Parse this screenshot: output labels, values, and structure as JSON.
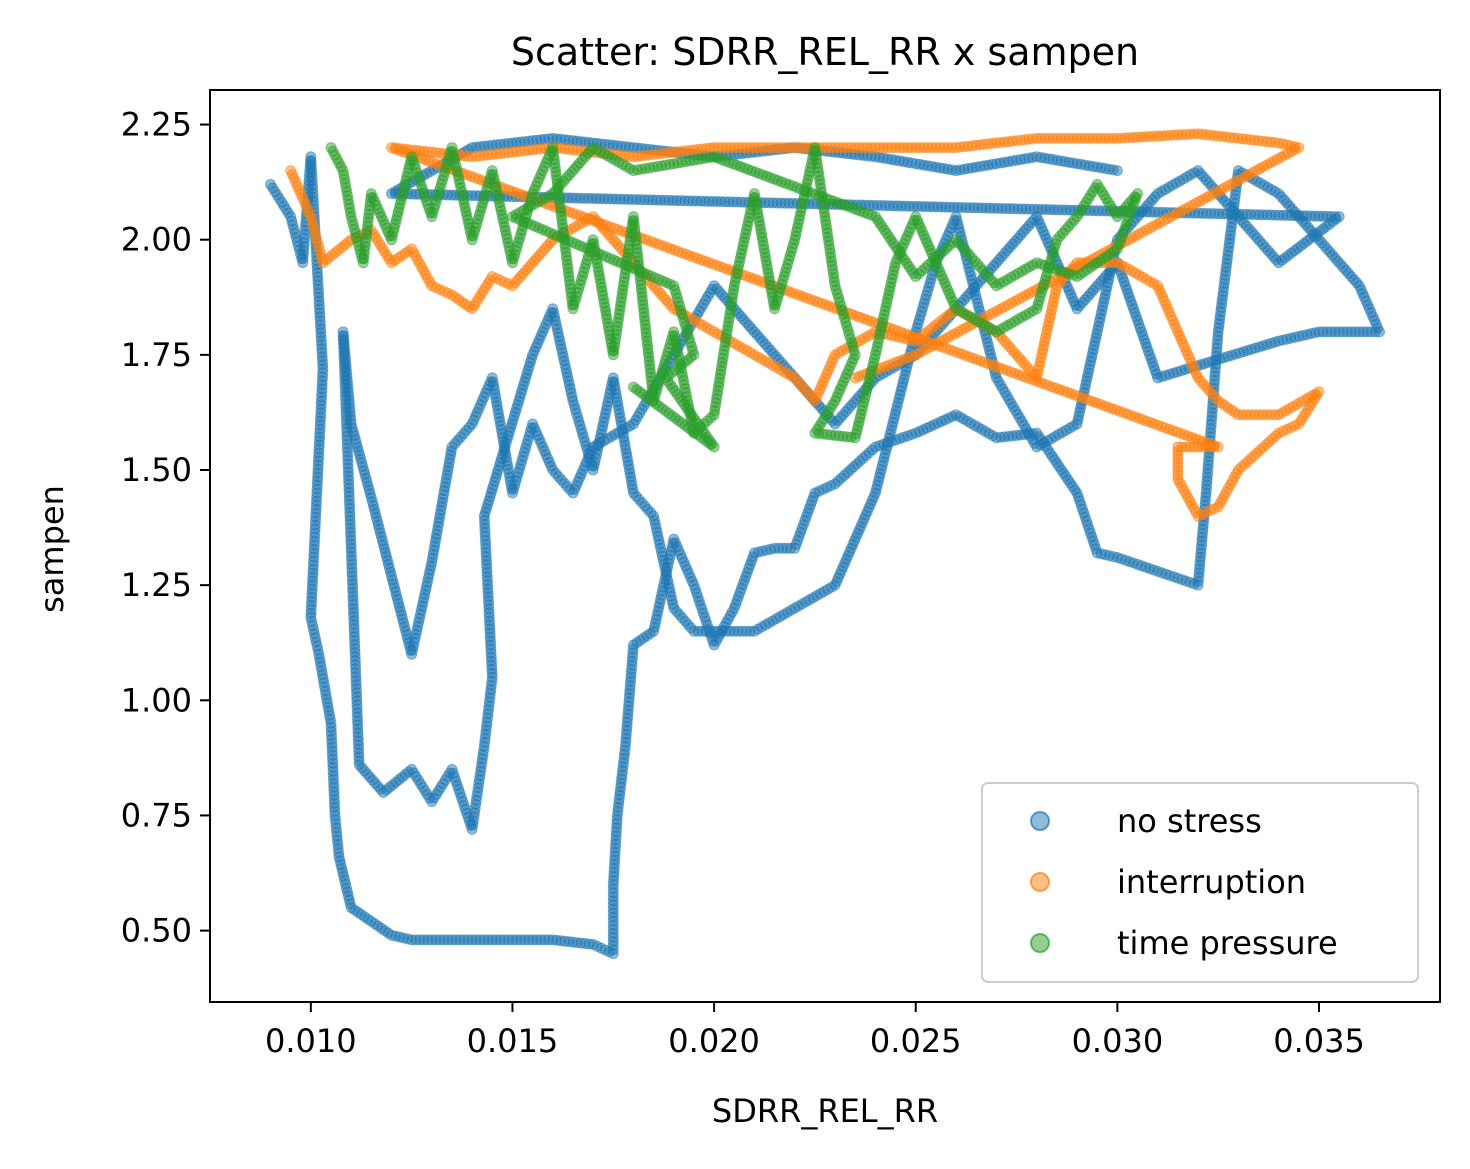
{
  "chart_data": {
    "type": "scatter",
    "title": "Scatter: SDRR_REL_RR x sampen",
    "xlabel": "SDRR_REL_RR",
    "ylabel": "sampen",
    "xlim": [
      0.0075,
      0.038
    ],
    "ylim": [
      0.345,
      2.325
    ],
    "xticks": [
      0.01,
      0.015,
      0.02,
      0.025,
      0.03,
      0.035
    ],
    "xtick_labels": [
      "0.010",
      "0.015",
      "0.020",
      "0.025",
      "0.030",
      "0.035"
    ],
    "yticks": [
      0.5,
      0.75,
      1.0,
      1.25,
      1.5,
      1.75,
      2.0,
      2.25
    ],
    "ytick_labels": [
      "0.50",
      "0.75",
      "1.00",
      "1.25",
      "1.50",
      "1.75",
      "2.00",
      "2.25"
    ],
    "grid": false,
    "legend_position": "lower-right",
    "series": [
      {
        "name": "no stress",
        "color": "#1f77b4",
        "points": [
          [
            0.009,
            2.12
          ],
          [
            0.0095,
            2.05
          ],
          [
            0.0098,
            1.95
          ],
          [
            0.01,
            2.18
          ],
          [
            0.0103,
            1.72
          ],
          [
            0.01,
            1.18
          ],
          [
            0.0102,
            1.1
          ],
          [
            0.0105,
            0.95
          ],
          [
            0.0106,
            0.75
          ],
          [
            0.0107,
            0.66
          ],
          [
            0.011,
            0.55
          ],
          [
            0.0115,
            0.52
          ],
          [
            0.012,
            0.49
          ],
          [
            0.0125,
            0.48
          ],
          [
            0.013,
            0.48
          ],
          [
            0.014,
            0.48
          ],
          [
            0.015,
            0.48
          ],
          [
            0.016,
            0.48
          ],
          [
            0.017,
            0.47
          ],
          [
            0.0175,
            0.45
          ],
          [
            0.0175,
            0.6
          ],
          [
            0.0176,
            0.75
          ],
          [
            0.0178,
            0.9
          ],
          [
            0.018,
            1.12
          ],
          [
            0.0185,
            1.15
          ],
          [
            0.019,
            1.35
          ],
          [
            0.0195,
            1.25
          ],
          [
            0.02,
            1.12
          ],
          [
            0.0205,
            1.2
          ],
          [
            0.021,
            1.32
          ],
          [
            0.0215,
            1.33
          ],
          [
            0.022,
            1.33
          ],
          [
            0.0225,
            1.45
          ],
          [
            0.023,
            1.47
          ],
          [
            0.024,
            1.55
          ],
          [
            0.025,
            1.58
          ],
          [
            0.026,
            1.62
          ],
          [
            0.027,
            1.57
          ],
          [
            0.028,
            1.58
          ],
          [
            0.029,
            1.45
          ],
          [
            0.0295,
            1.32
          ],
          [
            0.03,
            1.31
          ],
          [
            0.031,
            1.28
          ],
          [
            0.032,
            1.25
          ],
          [
            0.0322,
            1.45
          ],
          [
            0.0325,
            1.8
          ],
          [
            0.033,
            2.15
          ],
          [
            0.034,
            2.1
          ],
          [
            0.035,
            2.0
          ],
          [
            0.036,
            1.9
          ],
          [
            0.0365,
            1.8
          ],
          [
            0.035,
            1.8
          ],
          [
            0.034,
            1.78
          ],
          [
            0.031,
            1.7
          ],
          [
            0.03,
            1.95
          ],
          [
            0.029,
            1.85
          ],
          [
            0.028,
            2.05
          ],
          [
            0.027,
            1.95
          ],
          [
            0.026,
            1.85
          ],
          [
            0.025,
            1.75
          ],
          [
            0.024,
            1.7
          ],
          [
            0.023,
            1.6
          ],
          [
            0.022,
            1.7
          ],
          [
            0.021,
            1.8
          ],
          [
            0.02,
            1.9
          ],
          [
            0.019,
            1.75
          ],
          [
            0.018,
            1.6
          ],
          [
            0.017,
            1.55
          ],
          [
            0.0165,
            1.45
          ],
          [
            0.016,
            1.5
          ],
          [
            0.0155,
            1.6
          ],
          [
            0.015,
            1.45
          ],
          [
            0.0145,
            1.7
          ],
          [
            0.014,
            1.6
          ],
          [
            0.0135,
            1.55
          ],
          [
            0.013,
            1.3
          ],
          [
            0.0125,
            1.1
          ],
          [
            0.012,
            1.27
          ],
          [
            0.0115,
            1.44
          ],
          [
            0.011,
            1.6
          ],
          [
            0.0108,
            1.8
          ],
          [
            0.0112,
            0.86
          ],
          [
            0.0118,
            0.8
          ],
          [
            0.0125,
            0.85
          ],
          [
            0.013,
            0.78
          ],
          [
            0.0135,
            0.85
          ],
          [
            0.014,
            0.72
          ],
          [
            0.0143,
            0.9
          ],
          [
            0.0145,
            1.05
          ],
          [
            0.0143,
            1.4
          ],
          [
            0.0155,
            1.75
          ],
          [
            0.016,
            1.85
          ],
          [
            0.0165,
            1.65
          ],
          [
            0.017,
            1.5
          ],
          [
            0.0175,
            1.7
          ],
          [
            0.018,
            1.45
          ],
          [
            0.0185,
            1.4
          ],
          [
            0.019,
            1.2
          ],
          [
            0.0195,
            1.15
          ],
          [
            0.021,
            1.15
          ],
          [
            0.022,
            1.2
          ],
          [
            0.023,
            1.25
          ],
          [
            0.024,
            1.45
          ],
          [
            0.025,
            1.8
          ],
          [
            0.0255,
            1.95
          ],
          [
            0.026,
            2.05
          ],
          [
            0.027,
            1.7
          ],
          [
            0.028,
            1.55
          ],
          [
            0.029,
            1.6
          ],
          [
            0.03,
            2.0
          ],
          [
            0.031,
            2.1
          ],
          [
            0.032,
            2.15
          ],
          [
            0.033,
            2.05
          ],
          [
            0.034,
            1.95
          ],
          [
            0.0355,
            2.05
          ],
          [
            0.012,
            2.1
          ],
          [
            0.014,
            2.2
          ],
          [
            0.016,
            2.22
          ],
          [
            0.018,
            2.2
          ],
          [
            0.02,
            2.18
          ],
          [
            0.022,
            2.2
          ],
          [
            0.024,
            2.18
          ],
          [
            0.026,
            2.15
          ],
          [
            0.028,
            2.18
          ],
          [
            0.03,
            2.15
          ]
        ]
      },
      {
        "name": "interruption",
        "color": "#ff7f0e",
        "points": [
          [
            0.0095,
            2.15
          ],
          [
            0.01,
            2.05
          ],
          [
            0.0103,
            1.95
          ],
          [
            0.011,
            2.0
          ],
          [
            0.0115,
            2.02
          ],
          [
            0.012,
            1.95
          ],
          [
            0.0125,
            1.98
          ],
          [
            0.013,
            1.9
          ],
          [
            0.0135,
            1.88
          ],
          [
            0.014,
            1.85
          ],
          [
            0.0145,
            1.92
          ],
          [
            0.015,
            1.9
          ],
          [
            0.016,
            2.0
          ],
          [
            0.017,
            2.05
          ],
          [
            0.018,
            1.95
          ],
          [
            0.019,
            1.85
          ],
          [
            0.02,
            1.8
          ],
          [
            0.021,
            1.75
          ],
          [
            0.022,
            1.7
          ],
          [
            0.0225,
            1.65
          ],
          [
            0.023,
            1.75
          ],
          [
            0.024,
            1.8
          ],
          [
            0.025,
            1.78
          ],
          [
            0.026,
            1.85
          ],
          [
            0.027,
            1.8
          ],
          [
            0.028,
            1.7
          ],
          [
            0.0285,
            1.9
          ],
          [
            0.029,
            1.95
          ],
          [
            0.03,
            1.95
          ],
          [
            0.031,
            1.9
          ],
          [
            0.0315,
            1.8
          ],
          [
            0.032,
            1.7
          ],
          [
            0.0325,
            1.65
          ],
          [
            0.033,
            1.62
          ],
          [
            0.034,
            1.62
          ],
          [
            0.035,
            1.67
          ],
          [
            0.0345,
            1.6
          ],
          [
            0.034,
            1.58
          ],
          [
            0.033,
            1.5
          ],
          [
            0.0325,
            1.42
          ],
          [
            0.032,
            1.4
          ],
          [
            0.0315,
            1.48
          ],
          [
            0.0315,
            1.55
          ],
          [
            0.0325,
            1.55
          ],
          [
            0.012,
            2.2
          ],
          [
            0.014,
            2.18
          ],
          [
            0.016,
            2.2
          ],
          [
            0.018,
            2.18
          ],
          [
            0.02,
            2.2
          ],
          [
            0.022,
            2.2
          ],
          [
            0.024,
            2.2
          ],
          [
            0.026,
            2.2
          ],
          [
            0.028,
            2.22
          ],
          [
            0.03,
            2.22
          ],
          [
            0.032,
            2.23
          ],
          [
            0.033,
            2.22
          ],
          [
            0.034,
            2.21
          ],
          [
            0.0345,
            2.2
          ],
          [
            0.025,
            1.75
          ],
          [
            0.0235,
            1.7
          ]
        ]
      },
      {
        "name": "time pressure",
        "color": "#2ca02c",
        "points": [
          [
            0.0105,
            2.2
          ],
          [
            0.0108,
            2.15
          ],
          [
            0.011,
            2.05
          ],
          [
            0.0113,
            1.95
          ],
          [
            0.0115,
            2.1
          ],
          [
            0.012,
            2.0
          ],
          [
            0.0125,
            2.18
          ],
          [
            0.013,
            2.05
          ],
          [
            0.0135,
            2.2
          ],
          [
            0.014,
            2.0
          ],
          [
            0.0145,
            2.15
          ],
          [
            0.015,
            1.95
          ],
          [
            0.0155,
            2.1
          ],
          [
            0.016,
            2.2
          ],
          [
            0.0165,
            1.85
          ],
          [
            0.017,
            2.0
          ],
          [
            0.0175,
            1.75
          ],
          [
            0.018,
            2.05
          ],
          [
            0.0185,
            1.65
          ],
          [
            0.019,
            1.8
          ],
          [
            0.0195,
            1.58
          ],
          [
            0.02,
            1.62
          ],
          [
            0.0205,
            1.9
          ],
          [
            0.021,
            2.1
          ],
          [
            0.0215,
            1.85
          ],
          [
            0.022,
            2.0
          ],
          [
            0.0225,
            2.2
          ],
          [
            0.023,
            1.9
          ],
          [
            0.0235,
            1.75
          ],
          [
            0.023,
            1.65
          ],
          [
            0.0225,
            1.58
          ],
          [
            0.0235,
            1.57
          ],
          [
            0.024,
            1.75
          ],
          [
            0.0245,
            1.95
          ],
          [
            0.025,
            2.05
          ],
          [
            0.026,
            1.85
          ],
          [
            0.027,
            1.8
          ],
          [
            0.028,
            1.85
          ],
          [
            0.0285,
            2.0
          ],
          [
            0.029,
            2.05
          ],
          [
            0.0295,
            2.12
          ],
          [
            0.03,
            2.05
          ],
          [
            0.0305,
            2.1
          ],
          [
            0.03,
            1.98
          ],
          [
            0.029,
            1.92
          ],
          [
            0.028,
            1.95
          ],
          [
            0.027,
            1.9
          ],
          [
            0.026,
            2.0
          ],
          [
            0.025,
            1.92
          ],
          [
            0.024,
            2.05
          ],
          [
            0.02,
            2.18
          ],
          [
            0.018,
            2.15
          ],
          [
            0.017,
            2.2
          ],
          [
            0.016,
            2.1
          ],
          [
            0.015,
            2.05
          ],
          [
            0.019,
            1.9
          ],
          [
            0.0195,
            1.75
          ],
          [
            0.0188,
            1.7
          ],
          [
            0.02,
            1.55
          ],
          [
            0.018,
            1.68
          ]
        ]
      }
    ]
  }
}
